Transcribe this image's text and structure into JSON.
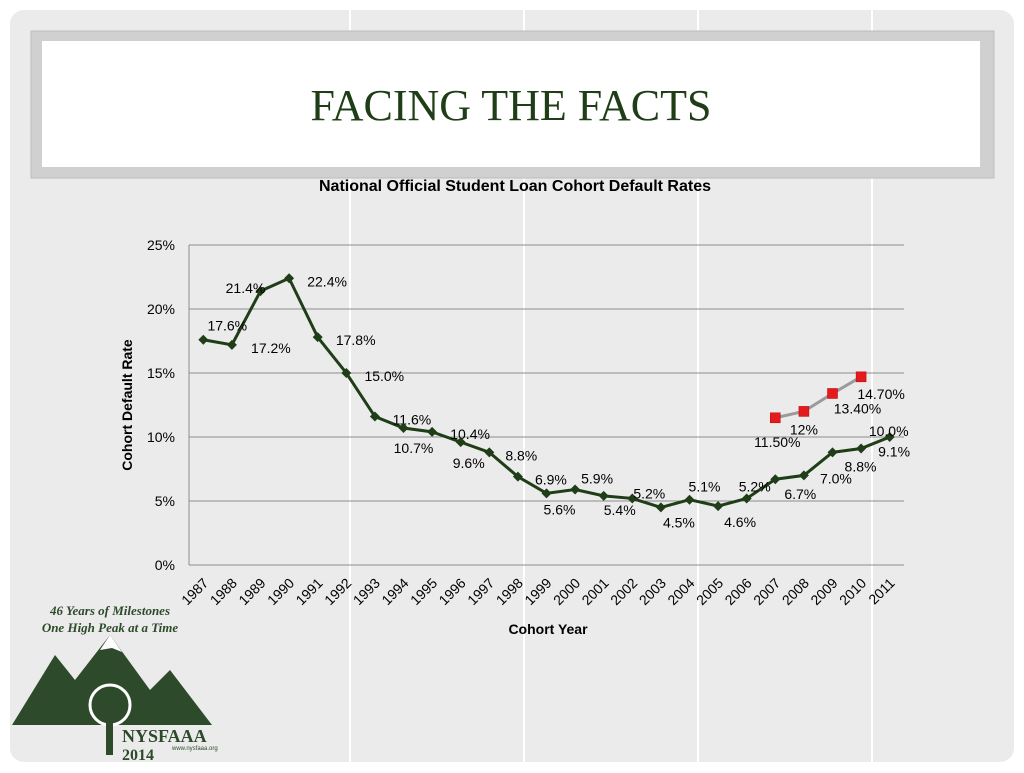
{
  "slide_title": "FACING THE FACTS",
  "logo": {
    "tagline_1": "46 Years of Milestones",
    "tagline_2": "One High Peak at a Time",
    "name": "NYSFAAA",
    "year": "2014",
    "url": "www.nysfaaa.org"
  },
  "chart_data": {
    "type": "line",
    "title": "National Official Student Loan Cohort Default Rates",
    "x_label": "Cohort Year",
    "y_label": "Cohort Default Rate",
    "categories": [
      "1987",
      "1988",
      "1989",
      "1990",
      "1991",
      "1992",
      "1993",
      "1994",
      "1995",
      "1996",
      "1997",
      "1998",
      "1999",
      "2000",
      "2001",
      "2002",
      "2003",
      "2004",
      "2005",
      "2006",
      "2007",
      "2008",
      "2009",
      "2010",
      "2011"
    ],
    "series": [
      {
        "color": "#1f3d16",
        "marker": "diamond",
        "values": [
          17.6,
          17.2,
          21.4,
          22.4,
          17.8,
          15.0,
          11.6,
          10.7,
          10.4,
          9.6,
          8.8,
          6.9,
          5.6,
          5.9,
          5.4,
          5.2,
          4.5,
          5.1,
          4.6,
          5.2,
          6.7,
          7.0,
          8.8,
          9.1,
          10.0
        ],
        "value_labels": [
          "17.6%",
          "17.2%",
          "21.4%",
          "22.4%",
          "17.8%",
          "15.0%",
          "11.6%",
          "10.7%",
          "10.4%",
          "9.6%",
          "8.8%",
          "6.9%",
          "5.6%",
          "5.9%",
          "5.4%",
          "5.2%",
          "4.5%",
          "5.1%",
          "4.6%",
          "5.2%",
          "6.7%",
          "7.0%",
          "8.8%",
          "9.1%",
          "10.0%"
        ]
      },
      {
        "color": "#9a9a9a",
        "marker_color": "#e41a1c",
        "marker": "square",
        "values": [
          null,
          null,
          null,
          null,
          null,
          null,
          null,
          null,
          null,
          null,
          null,
          null,
          null,
          null,
          null,
          null,
          null,
          null,
          null,
          null,
          11.5,
          12,
          13.4,
          14.7,
          null
        ],
        "value_labels": [
          null,
          null,
          null,
          null,
          null,
          null,
          null,
          null,
          null,
          null,
          null,
          null,
          null,
          null,
          null,
          null,
          null,
          null,
          null,
          null,
          "11.50%",
          "12%",
          "13.40%",
          "14.70%",
          null
        ]
      }
    ],
    "ylim": [
      0,
      25
    ],
    "yticks": [
      {
        "value": 0,
        "label": "0%"
      },
      {
        "value": 5,
        "label": "5%"
      },
      {
        "value": 10,
        "label": "10%"
      },
      {
        "value": 15,
        "label": "15%"
      },
      {
        "value": 20,
        "label": "20%"
      },
      {
        "value": 25,
        "label": "25%"
      }
    ],
    "grid": true
  }
}
